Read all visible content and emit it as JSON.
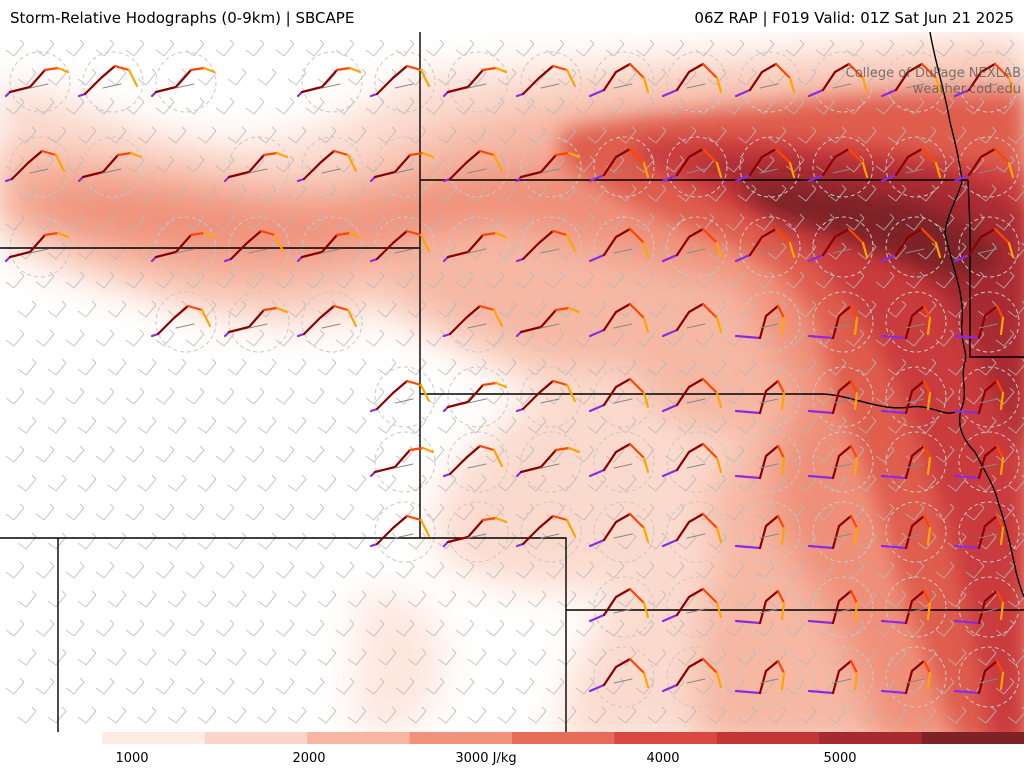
{
  "header": {
    "title": "Storm-Relative Hodographs (0-9km) | SBCAPE",
    "run_info": "06Z RAP | F019 Valid: 01Z Sat Jun 21 2025"
  },
  "credit": {
    "line1": "College of DuPage NEXLAB",
    "line2": "weather.cod.edu"
  },
  "colorbar": {
    "ticks": [
      {
        "label": "1000",
        "value": 1000
      },
      {
        "label": "2000",
        "value": 2000
      },
      {
        "label": "3000 J/kg",
        "value": 3000
      },
      {
        "label": "4000",
        "value": 4000
      },
      {
        "label": "5000",
        "value": 5000
      }
    ],
    "range": [
      0,
      6000
    ],
    "colors": [
      "#ffffff",
      "#fdebe4",
      "#fbd5c7",
      "#f7b6a2",
      "#f2917c",
      "#e86a58",
      "#d9493f",
      "#c33536",
      "#a72a30",
      "#7e2227"
    ]
  },
  "hodograph_colors": {
    "low": "#8b0000",
    "mid": "#ff4500",
    "upper": "#ffa500",
    "top": "#8a2be2"
  }
}
